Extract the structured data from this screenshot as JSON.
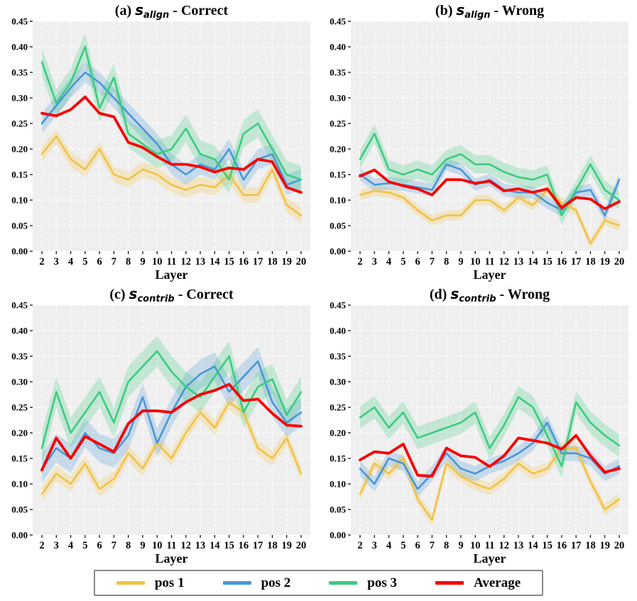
{
  "colors": {
    "pos1": "#F2C245",
    "pos2": "#4A96D8",
    "pos3": "#3CCB80",
    "average": "#FA0000",
    "plot_bg": "#EFEFEF",
    "grid": "#FFFFFF",
    "tick_text": "#000000",
    "legend_border": "#8A8A8A"
  },
  "legend": {
    "items": [
      {
        "label": "pos 1",
        "color_key": "pos1"
      },
      {
        "label": "pos 2",
        "color_key": "pos2"
      },
      {
        "label": "pos 3",
        "color_key": "pos3"
      },
      {
        "label": "Average",
        "color_key": "average"
      }
    ]
  },
  "axes": {
    "xlabel": "Layer",
    "x_ticks": [
      2,
      3,
      4,
      5,
      6,
      7,
      8,
      9,
      10,
      11,
      12,
      13,
      14,
      15,
      16,
      17,
      18,
      19,
      20
    ],
    "y_ticks": [
      "0.00",
      "0.05",
      "0.10",
      "0.15",
      "0.20",
      "0.25",
      "0.30",
      "0.35",
      "0.40",
      "0.45"
    ],
    "ylim": [
      0,
      0.45
    ],
    "grid": "on",
    "grid_style": "white-dashed"
  },
  "chart_data": [
    {
      "id": "a",
      "type": "line",
      "title": {
        "prefix": "(a)",
        "symbol": "s",
        "subscript": "align",
        "suffix": "- Correct"
      },
      "xlabel": "Layer",
      "x": [
        2,
        3,
        4,
        5,
        6,
        7,
        8,
        9,
        10,
        11,
        12,
        13,
        14,
        15,
        16,
        17,
        18,
        19,
        20
      ],
      "ylim": [
        0,
        0.45
      ],
      "series": [
        {
          "name": "pos 1",
          "color_key": "pos1",
          "band": 0.015,
          "values": [
            0.19,
            0.225,
            0.18,
            0.16,
            0.2,
            0.15,
            0.14,
            0.16,
            0.15,
            0.13,
            0.12,
            0.13,
            0.125,
            0.15,
            0.11,
            0.11,
            0.16,
            0.09,
            0.07
          ]
        },
        {
          "name": "pos 2",
          "color_key": "pos2",
          "band": 0.02,
          "values": [
            0.25,
            0.285,
            0.32,
            0.35,
            0.33,
            0.3,
            0.27,
            0.24,
            0.21,
            0.17,
            0.15,
            0.17,
            0.16,
            0.2,
            0.14,
            0.18,
            0.19,
            0.13,
            0.14
          ]
        },
        {
          "name": "pos 3",
          "color_key": "pos3",
          "band": 0.027,
          "values": [
            0.37,
            0.29,
            0.33,
            0.4,
            0.28,
            0.34,
            0.23,
            0.21,
            0.19,
            0.2,
            0.24,
            0.19,
            0.18,
            0.14,
            0.23,
            0.25,
            0.2,
            0.15,
            0.14
          ]
        },
        {
          "name": "Average",
          "color_key": "average",
          "band": 0,
          "values": [
            0.27,
            0.265,
            0.277,
            0.302,
            0.27,
            0.263,
            0.213,
            0.203,
            0.185,
            0.17,
            0.17,
            0.165,
            0.155,
            0.163,
            0.16,
            0.18,
            0.175,
            0.125,
            0.115
          ]
        }
      ]
    },
    {
      "id": "b",
      "type": "line",
      "title": {
        "prefix": "(b)",
        "symbol": "s",
        "subscript": "align",
        "suffix": "- Wrong"
      },
      "xlabel": "Layer",
      "x": [
        2,
        3,
        4,
        5,
        6,
        7,
        8,
        9,
        10,
        11,
        12,
        13,
        14,
        15,
        16,
        17,
        18,
        19,
        20
      ],
      "ylim": [
        0,
        0.45
      ],
      "series": [
        {
          "name": "pos 1",
          "color_key": "pos1",
          "band": 0.01,
          "values": [
            0.11,
            0.118,
            0.115,
            0.105,
            0.08,
            0.06,
            0.07,
            0.07,
            0.1,
            0.1,
            0.08,
            0.105,
            0.09,
            0.12,
            0.095,
            0.08,
            0.015,
            0.06,
            0.05
          ]
        },
        {
          "name": "pos 2",
          "color_key": "pos2",
          "band": 0.012,
          "values": [
            0.15,
            0.13,
            0.133,
            0.13,
            0.125,
            0.12,
            0.17,
            0.16,
            0.13,
            0.14,
            0.12,
            0.115,
            0.115,
            0.095,
            0.08,
            0.115,
            0.12,
            0.07,
            0.14
          ]
        },
        {
          "name": "pos 3",
          "color_key": "pos3",
          "band": 0.018,
          "values": [
            0.18,
            0.23,
            0.16,
            0.15,
            0.16,
            0.15,
            0.18,
            0.19,
            0.17,
            0.17,
            0.155,
            0.145,
            0.14,
            0.15,
            0.07,
            0.12,
            0.17,
            0.12,
            0.1
          ]
        },
        {
          "name": "Average",
          "color_key": "average",
          "band": 0,
          "values": [
            0.147,
            0.159,
            0.136,
            0.128,
            0.122,
            0.11,
            0.14,
            0.14,
            0.133,
            0.137,
            0.118,
            0.122,
            0.115,
            0.122,
            0.085,
            0.105,
            0.102,
            0.083,
            0.097
          ]
        }
      ]
    },
    {
      "id": "c",
      "type": "line",
      "title": {
        "prefix": "(c)",
        "symbol": "s",
        "subscript": "contrib",
        "suffix": "- Correct"
      },
      "xlabel": "Layer",
      "x": [
        2,
        3,
        4,
        5,
        6,
        7,
        8,
        9,
        10,
        11,
        12,
        13,
        14,
        15,
        16,
        17,
        18,
        19,
        20
      ],
      "ylim": [
        0,
        0.45
      ],
      "series": [
        {
          "name": "pos 1",
          "color_key": "pos1",
          "band": 0.015,
          "values": [
            0.08,
            0.12,
            0.1,
            0.14,
            0.09,
            0.11,
            0.16,
            0.13,
            0.18,
            0.15,
            0.2,
            0.24,
            0.21,
            0.26,
            0.24,
            0.17,
            0.15,
            0.19,
            0.12
          ]
        },
        {
          "name": "pos 2",
          "color_key": "pos2",
          "band": 0.028,
          "values": [
            0.13,
            0.17,
            0.15,
            0.2,
            0.17,
            0.16,
            0.195,
            0.27,
            0.18,
            0.24,
            0.29,
            0.315,
            0.33,
            0.28,
            0.31,
            0.34,
            0.26,
            0.22,
            0.24
          ]
        },
        {
          "name": "pos 3",
          "color_key": "pos3",
          "band": 0.03,
          "values": [
            0.17,
            0.28,
            0.2,
            0.24,
            0.28,
            0.22,
            0.3,
            0.33,
            0.36,
            0.32,
            0.29,
            0.27,
            0.31,
            0.35,
            0.24,
            0.29,
            0.305,
            0.235,
            0.28
          ]
        },
        {
          "name": "Average",
          "color_key": "average",
          "band": 0,
          "values": [
            0.127,
            0.19,
            0.15,
            0.193,
            0.178,
            0.163,
            0.218,
            0.243,
            0.243,
            0.24,
            0.26,
            0.275,
            0.283,
            0.295,
            0.263,
            0.266,
            0.238,
            0.215,
            0.213
          ]
        }
      ]
    },
    {
      "id": "d",
      "type": "line",
      "title": {
        "prefix": "(d)",
        "symbol": "s",
        "subscript": "contrib",
        "suffix": "- Wrong"
      },
      "xlabel": "Layer",
      "x": [
        2,
        3,
        4,
        5,
        6,
        7,
        8,
        9,
        10,
        11,
        12,
        13,
        14,
        15,
        16,
        17,
        18,
        19,
        20
      ],
      "ylim": [
        0,
        0.45
      ],
      "series": [
        {
          "name": "pos 1",
          "color_key": "pos1",
          "band": 0.012,
          "values": [
            0.08,
            0.14,
            0.12,
            0.15,
            0.07,
            0.03,
            0.14,
            0.115,
            0.1,
            0.09,
            0.11,
            0.14,
            0.12,
            0.13,
            0.17,
            0.17,
            0.105,
            0.05,
            0.07
          ]
        },
        {
          "name": "pos 2",
          "color_key": "pos2",
          "band": 0.015,
          "values": [
            0.13,
            0.1,
            0.15,
            0.14,
            0.09,
            0.12,
            0.16,
            0.13,
            0.12,
            0.135,
            0.145,
            0.16,
            0.18,
            0.22,
            0.16,
            0.16,
            0.15,
            0.12,
            0.135
          ]
        },
        {
          "name": "pos 3",
          "color_key": "pos3",
          "band": 0.022,
          "values": [
            0.23,
            0.25,
            0.21,
            0.24,
            0.19,
            0.2,
            0.21,
            0.22,
            0.24,
            0.17,
            0.215,
            0.27,
            0.25,
            0.195,
            0.135,
            0.26,
            0.22,
            0.195,
            0.175
          ]
        },
        {
          "name": "Average",
          "color_key": "average",
          "band": 0,
          "values": [
            0.147,
            0.163,
            0.16,
            0.178,
            0.117,
            0.115,
            0.17,
            0.155,
            0.152,
            0.134,
            0.155,
            0.19,
            0.185,
            0.18,
            0.168,
            0.195,
            0.155,
            0.123,
            0.13
          ]
        }
      ]
    }
  ]
}
